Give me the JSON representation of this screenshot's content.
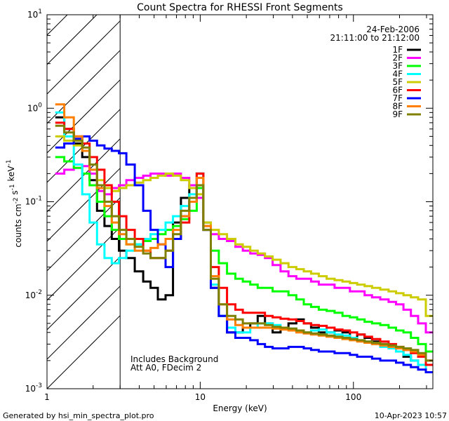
{
  "colors": {
    "background": "#ffffff",
    "axes": "#000000"
  },
  "chart_data": {
    "type": "line",
    "step": true,
    "title": "Count Spectra for RHESSI Front Segments",
    "xlabel": "Energy (keV)",
    "ylabel_main": "counts cm",
    "ylabel_units": [
      {
        "text": "counts cm",
        "sup": "-2"
      },
      {
        "text": " s",
        "sup": "-1"
      },
      {
        "text": " keV",
        "sup": "-1"
      }
    ],
    "x_scale": "log",
    "y_scale": "log",
    "xlim": [
      1,
      330
    ],
    "ylim": [
      0.001,
      10
    ],
    "x_ticks": [
      {
        "value": 1,
        "label": "1"
      },
      {
        "value": 10,
        "label": "10"
      },
      {
        "value": 100,
        "label": "100"
      }
    ],
    "y_ticks": [
      {
        "value": 10,
        "base": "10",
        "exp": "1"
      },
      {
        "value": 1,
        "base": "10",
        "exp": "0"
      },
      {
        "value": 0.1,
        "base": "10",
        "exp": "-1"
      },
      {
        "value": 0.01,
        "base": "10",
        "exp": "-2"
      },
      {
        "value": 0.001,
        "base": "10",
        "exp": "-3"
      }
    ],
    "hatched_region": {
      "from": 1,
      "to": 3
    },
    "date": "24-Feb-2006",
    "time_range": "21:11:00 to 21:12:00",
    "annotations": [
      "Includes Background",
      "Att A0, FDecim 2"
    ],
    "legend_position": "top-right",
    "footer_left": "Generated by hsi_min_spectra_plot.pro",
    "footer_right": "10-Apr-2023 10:57",
    "energy_bins": [
      1.2,
      1.4,
      1.6,
      1.8,
      2.0,
      2.25,
      2.5,
      2.8,
      3.1,
      3.5,
      4.0,
      4.5,
      5.0,
      5.6,
      6.3,
      7.0,
      8.0,
      9.0,
      10.0,
      11.0,
      12.5,
      14.0,
      16.0,
      18.0,
      20.0,
      22.5,
      25.0,
      28.0,
      31.5,
      35.5,
      40.0,
      45.0,
      50.0,
      56.0,
      63.0,
      71.0,
      80.0,
      90.0,
      100.0,
      112.0,
      125.0,
      140.0,
      160.0,
      180.0,
      200.0,
      225.0,
      250.0,
      280.0,
      315.0
    ],
    "series": [
      {
        "name": "1F",
        "color": "#000000",
        "values": [
          0.8,
          0.6,
          0.42,
          0.3,
          0.17,
          0.08,
          0.055,
          0.04,
          0.03,
          0.025,
          0.018,
          0.014,
          0.012,
          0.009,
          0.01,
          0.06,
          0.11,
          0.15,
          0.2,
          0.06,
          0.012,
          0.006,
          0.004,
          0.004,
          0.0045,
          0.005,
          0.006,
          0.005,
          0.004,
          0.0045,
          0.005,
          0.0055,
          0.005,
          0.0045,
          0.004,
          0.004,
          0.0042,
          0.004,
          0.0035,
          0.0038,
          0.0035,
          0.0032,
          0.003,
          0.0028,
          0.0025,
          0.0022,
          0.002,
          0.0018,
          0.0015
        ]
      },
      {
        "name": "2F",
        "color": "#ff00ff",
        "values": [
          0.2,
          0.22,
          0.23,
          0.24,
          0.2,
          0.13,
          0.12,
          0.14,
          0.15,
          0.17,
          0.18,
          0.19,
          0.2,
          0.2,
          0.19,
          0.2,
          0.18,
          0.15,
          0.11,
          0.05,
          0.045,
          0.04,
          0.038,
          0.033,
          0.03,
          0.028,
          0.027,
          0.025,
          0.021,
          0.018,
          0.016,
          0.015,
          0.015,
          0.014,
          0.013,
          0.013,
          0.012,
          0.012,
          0.011,
          0.011,
          0.01,
          0.0095,
          0.009,
          0.0085,
          0.008,
          0.007,
          0.006,
          0.005,
          0.004
        ]
      },
      {
        "name": "3F",
        "color": "#00ff00",
        "values": [
          0.3,
          0.27,
          0.23,
          0.2,
          0.15,
          0.1,
          0.07,
          0.05,
          0.04,
          0.035,
          0.035,
          0.038,
          0.04,
          0.045,
          0.05,
          0.055,
          0.065,
          0.08,
          0.14,
          0.05,
          0.03,
          0.022,
          0.017,
          0.015,
          0.014,
          0.013,
          0.012,
          0.012,
          0.011,
          0.011,
          0.01,
          0.009,
          0.008,
          0.0075,
          0.007,
          0.0068,
          0.0065,
          0.006,
          0.0058,
          0.0055,
          0.0052,
          0.005,
          0.0048,
          0.0045,
          0.0042,
          0.004,
          0.0035,
          0.003,
          0.0025
        ]
      },
      {
        "name": "4F",
        "color": "#00ffff",
        "values": [
          0.9,
          0.5,
          0.25,
          0.12,
          0.06,
          0.035,
          0.025,
          0.022,
          0.025,
          0.03,
          0.035,
          0.04,
          0.045,
          0.05,
          0.06,
          0.07,
          0.09,
          0.12,
          0.2,
          0.06,
          0.013,
          0.006,
          0.0045,
          0.004,
          0.004,
          0.0045,
          0.005,
          0.005,
          0.0048,
          0.0045,
          0.0044,
          0.0042,
          0.004,
          0.0042,
          0.0043,
          0.004,
          0.0038,
          0.0037,
          0.0035,
          0.0033,
          0.0032,
          0.003,
          0.0028,
          0.0027,
          0.0025,
          0.0023,
          0.002,
          0.0018,
          0.0015
        ]
      },
      {
        "name": "5F",
        "color": "#cccc00",
        "values": [
          0.5,
          0.45,
          0.4,
          0.35,
          0.25,
          0.17,
          0.14,
          0.13,
          0.14,
          0.15,
          0.16,
          0.17,
          0.18,
          0.19,
          0.2,
          0.19,
          0.17,
          0.14,
          0.12,
          0.06,
          0.05,
          0.045,
          0.04,
          0.035,
          0.033,
          0.03,
          0.028,
          0.026,
          0.024,
          0.022,
          0.02,
          0.019,
          0.018,
          0.017,
          0.016,
          0.015,
          0.0145,
          0.014,
          0.0135,
          0.013,
          0.0125,
          0.012,
          0.0115,
          0.011,
          0.0105,
          0.01,
          0.0095,
          0.009,
          0.006
        ]
      },
      {
        "name": "6F",
        "color": "#ff0000",
        "values": [
          0.7,
          0.6,
          0.5,
          0.42,
          0.3,
          0.22,
          0.15,
          0.1,
          0.07,
          0.05,
          0.04,
          0.03,
          0.025,
          0.025,
          0.03,
          0.04,
          0.06,
          0.1,
          0.2,
          0.055,
          0.02,
          0.012,
          0.008,
          0.007,
          0.0065,
          0.0065,
          0.0065,
          0.006,
          0.0058,
          0.0056,
          0.0055,
          0.0053,
          0.005,
          0.0048,
          0.0047,
          0.0045,
          0.0043,
          0.0042,
          0.004,
          0.0038,
          0.0036,
          0.0034,
          0.0032,
          0.003,
          0.0028,
          0.0026,
          0.0024,
          0.0022,
          0.0018
        ]
      },
      {
        "name": "7F",
        "color": "#0000ff",
        "values": [
          0.38,
          0.42,
          0.47,
          0.5,
          0.45,
          0.4,
          0.37,
          0.35,
          0.33,
          0.25,
          0.15,
          0.08,
          0.05,
          0.035,
          0.02,
          0.04,
          0.07,
          0.1,
          0.15,
          0.05,
          0.012,
          0.006,
          0.004,
          0.0035,
          0.0035,
          0.0033,
          0.003,
          0.0028,
          0.0027,
          0.0027,
          0.0028,
          0.0028,
          0.0027,
          0.0026,
          0.0025,
          0.0025,
          0.0024,
          0.0024,
          0.0023,
          0.0022,
          0.0022,
          0.0021,
          0.002,
          0.002,
          0.0019,
          0.0018,
          0.0017,
          0.0016,
          0.0015
        ]
      },
      {
        "name": "8F",
        "color": "#ff7f00",
        "values": [
          1.1,
          0.8,
          0.5,
          0.35,
          0.22,
          0.14,
          0.09,
          0.06,
          0.045,
          0.035,
          0.03,
          0.03,
          0.032,
          0.035,
          0.04,
          0.05,
          0.07,
          0.1,
          0.18,
          0.055,
          0.016,
          0.008,
          0.0055,
          0.0048,
          0.0045,
          0.0045,
          0.0045,
          0.0045,
          0.0044,
          0.0043,
          0.0042,
          0.004,
          0.0039,
          0.0038,
          0.0037,
          0.0036,
          0.0035,
          0.0034,
          0.0033,
          0.0032,
          0.0031,
          0.003,
          0.0029,
          0.0028,
          0.0027,
          0.0026,
          0.0025,
          0.0023,
          0.002
        ]
      },
      {
        "name": "9F",
        "color": "#808000",
        "values": [
          0.65,
          0.55,
          0.45,
          0.38,
          0.25,
          0.15,
          0.1,
          0.07,
          0.05,
          0.04,
          0.033,
          0.028,
          0.025,
          0.025,
          0.03,
          0.045,
          0.08,
          0.11,
          0.15,
          0.05,
          0.015,
          0.008,
          0.006,
          0.0055,
          0.005,
          0.005,
          0.005,
          0.0048,
          0.0046,
          0.0045,
          0.0044,
          0.0042,
          0.004,
          0.0039,
          0.0038,
          0.0037,
          0.0036,
          0.0035,
          0.0034,
          0.0033,
          0.0032,
          0.0031,
          0.003,
          0.0029,
          0.0028,
          0.0027,
          0.0026,
          0.0024,
          0.002
        ]
      }
    ]
  }
}
